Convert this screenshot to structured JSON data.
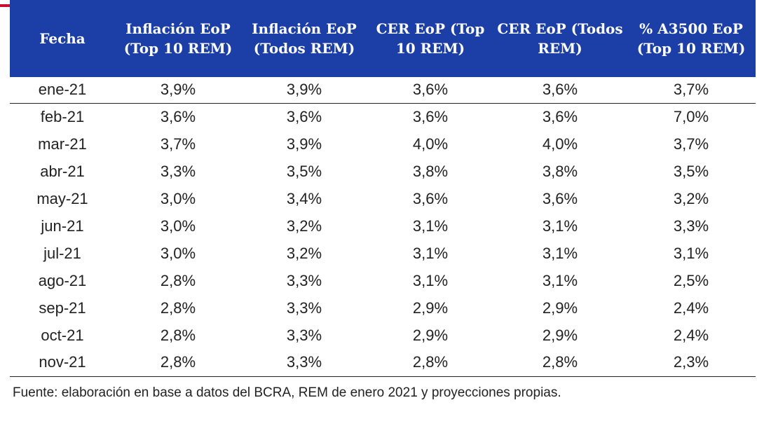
{
  "table": {
    "headers": [
      "Fecha",
      "Inflación EoP (Top 10 REM)",
      "Inflación EoP (Todos REM)",
      "CER EoP (Top 10 REM)",
      "CER EoP (Todos REM)",
      "% A3500 EoP (Top 10 REM)"
    ],
    "rows": [
      [
        "ene-21",
        "3,9%",
        "3,9%",
        "3,6%",
        "3,6%",
        "3,7%"
      ],
      [
        "feb-21",
        "3,6%",
        "3,6%",
        "3,6%",
        "3,6%",
        "7,0%"
      ],
      [
        "mar-21",
        "3,7%",
        "3,9%",
        "4,0%",
        "4,0%",
        "3,7%"
      ],
      [
        "abr-21",
        "3,3%",
        "3,5%",
        "3,8%",
        "3,8%",
        "3,5%"
      ],
      [
        "may-21",
        "3,0%",
        "3,4%",
        "3,6%",
        "3,6%",
        "3,2%"
      ],
      [
        "jun-21",
        "3,0%",
        "3,2%",
        "3,1%",
        "3,1%",
        "3,3%"
      ],
      [
        "jul-21",
        "3,0%",
        "3,2%",
        "3,1%",
        "3,1%",
        "3,1%"
      ],
      [
        "ago-21",
        "2,8%",
        "3,3%",
        "3,1%",
        "3,1%",
        "2,5%"
      ],
      [
        "sep-21",
        "2,8%",
        "3,3%",
        "2,9%",
        "2,9%",
        "2,4%"
      ],
      [
        "oct-21",
        "2,8%",
        "3,3%",
        "2,9%",
        "2,9%",
        "2,4%"
      ],
      [
        "nov-21",
        "2,8%",
        "3,3%",
        "2,8%",
        "2,8%",
        "2,3%"
      ]
    ]
  },
  "source": "Fuente: elaboración en base a datos del BCRA, REM de enero 2021 y proyecciones propias.",
  "colors": {
    "header_bg": "#1b3fa6",
    "header_text": "#ffffff",
    "accent": "#c8102e"
  }
}
